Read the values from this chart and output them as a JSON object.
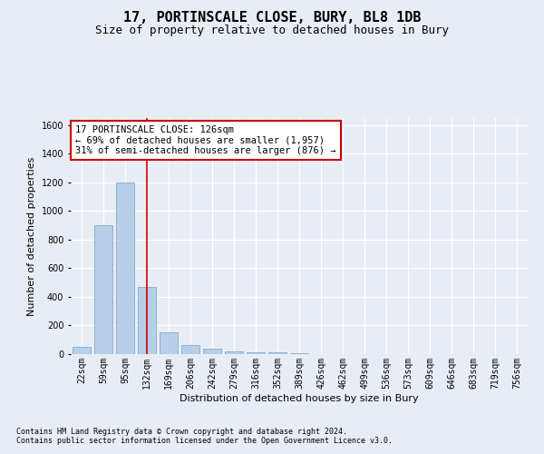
{
  "title": "17, PORTINSCALE CLOSE, BURY, BL8 1DB",
  "subtitle": "Size of property relative to detached houses in Bury",
  "xlabel": "Distribution of detached houses by size in Bury",
  "ylabel": "Number of detached properties",
  "footnote": "Contains HM Land Registry data © Crown copyright and database right 2024.\nContains public sector information licensed under the Open Government Licence v3.0.",
  "bin_labels": [
    "22sqm",
    "59sqm",
    "95sqm",
    "132sqm",
    "169sqm",
    "206sqm",
    "242sqm",
    "279sqm",
    "316sqm",
    "352sqm",
    "389sqm",
    "426sqm",
    "462sqm",
    "499sqm",
    "536sqm",
    "573sqm",
    "609sqm",
    "646sqm",
    "683sqm",
    "719sqm",
    "756sqm"
  ],
  "bar_values": [
    50,
    900,
    1200,
    470,
    155,
    65,
    35,
    22,
    15,
    15,
    5,
    0,
    0,
    0,
    0,
    0,
    0,
    0,
    0,
    0,
    0
  ],
  "bar_color": "#b8cfe8",
  "bar_edge_color": "#6fa0c8",
  "highlight_index": 3,
  "highlight_line_color": "#cc0000",
  "ylim": [
    0,
    1650
  ],
  "yticks": [
    0,
    200,
    400,
    600,
    800,
    1000,
    1200,
    1400,
    1600
  ],
  "annotation_text": "17 PORTINSCALE CLOSE: 126sqm\n← 69% of detached houses are smaller (1,957)\n31% of semi-detached houses are larger (876) →",
  "annotation_box_color": "#ffffff",
  "annotation_box_edge": "#cc0000",
  "bg_color": "#e8edf5",
  "plot_bg_color": "#e8edf5",
  "grid_color": "#ffffff",
  "title_fontsize": 11,
  "subtitle_fontsize": 9,
  "axis_label_fontsize": 8,
  "tick_fontsize": 7,
  "annotation_fontsize": 7.5,
  "footnote_fontsize": 6
}
